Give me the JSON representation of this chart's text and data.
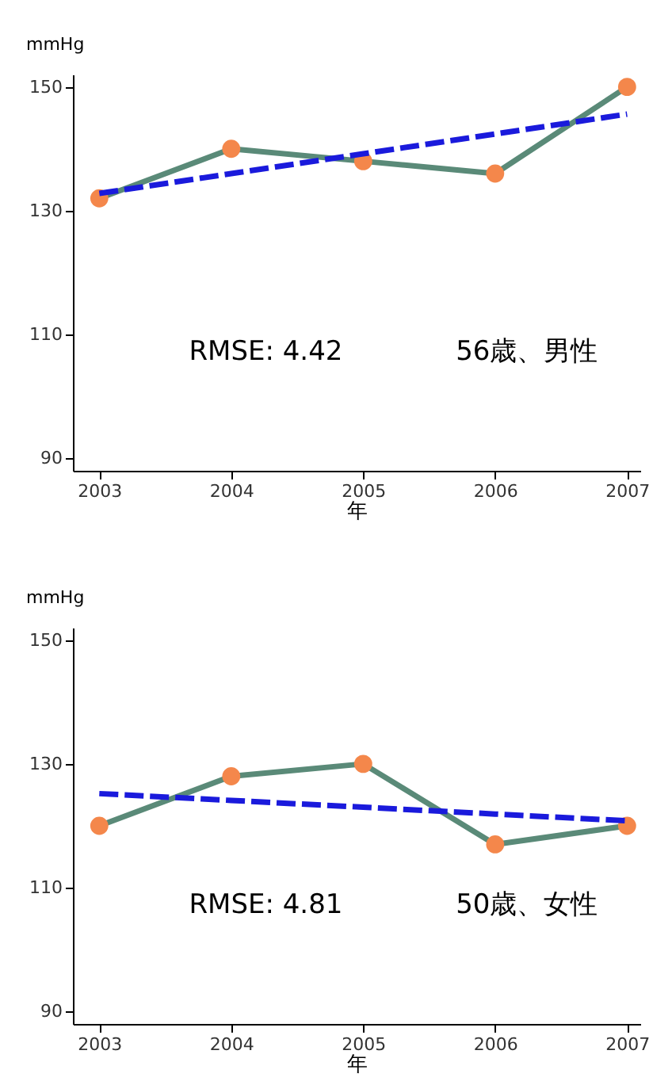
{
  "chart_data": [
    {
      "type": "line",
      "xlabel": "年",
      "ylabel": "mmHg",
      "x": [
        2003,
        2004,
        2005,
        2006,
        2007
      ],
      "xlim": [
        2002.8,
        2007.1
      ],
      "xticks": [
        2003,
        2004,
        2005,
        2006,
        2007
      ],
      "ylim": [
        88,
        152
      ],
      "yticks": [
        90,
        110,
        130,
        150
      ],
      "grid": false,
      "legend": false,
      "series": [
        {
          "type": "line",
          "color": "#5a8a78",
          "marker": "none",
          "line_style": "solid",
          "values": [
            132,
            140,
            138,
            136,
            150
          ]
        },
        {
          "type": "scatter",
          "color": "#f4874b",
          "marker": "circle",
          "values": [
            132,
            140,
            138,
            136,
            150
          ]
        },
        {
          "type": "line",
          "color": "#1a1adc",
          "marker": "none",
          "line_style": "dashed",
          "values": [
            132.8,
            136.0,
            139.2,
            142.4,
            145.6
          ]
        }
      ],
      "annotations": [
        "RMSE: 4.42",
        "56歳、男性"
      ]
    },
    {
      "type": "line",
      "xlabel": "年",
      "ylabel": "mmHg",
      "x": [
        2003,
        2004,
        2005,
        2006,
        2007
      ],
      "xlim": [
        2002.8,
        2007.1
      ],
      "xticks": [
        2003,
        2004,
        2005,
        2006,
        2007
      ],
      "ylim": [
        88,
        152
      ],
      "yticks": [
        90,
        110,
        130,
        150
      ],
      "grid": false,
      "legend": false,
      "series": [
        {
          "type": "line",
          "color": "#5a8a78",
          "marker": "none",
          "line_style": "solid",
          "values": [
            120,
            128,
            130,
            117,
            120
          ]
        },
        {
          "type": "scatter",
          "color": "#f4874b",
          "marker": "circle",
          "values": [
            120,
            128,
            130,
            117,
            120
          ]
        },
        {
          "type": "line",
          "color": "#1a1adc",
          "marker": "none",
          "line_style": "dashed",
          "values": [
            125.2,
            124.1,
            123.0,
            121.9,
            120.8
          ]
        }
      ],
      "annotations": [
        "RMSE: 4.81",
        "50歳、女性"
      ]
    }
  ]
}
